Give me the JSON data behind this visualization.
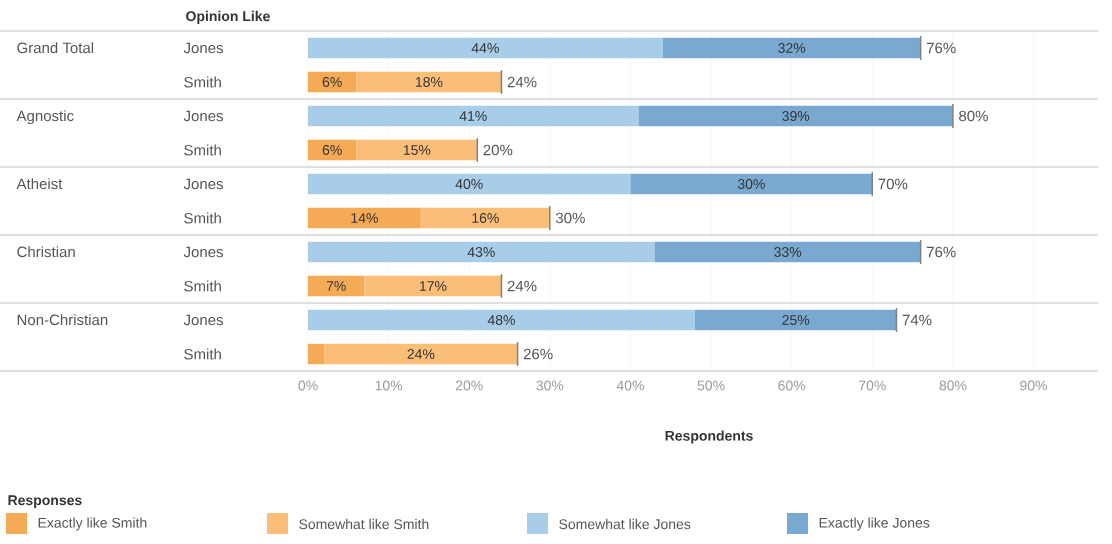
{
  "chart_data": {
    "type": "bar",
    "orientation": "horizontal",
    "stacked": true,
    "ylabel": "Opinion Like",
    "xlabel": "Respondents",
    "legend_title": "Responses",
    "categories": [
      "Jones",
      "Smith",
      "Jones",
      "Smith",
      "Jones",
      "Smith",
      "Jones",
      "Smith",
      "Jones",
      "Smith"
    ],
    "annotations": [
      "Grand Total",
      "Agnostic",
      "Atheist",
      "Christian",
      "Non-Christian"
    ],
    "series": [
      {
        "name": "Exactly like Smith",
        "color": "#f5aa55",
        "values": [
          null,
          6,
          null,
          6,
          null,
          14,
          null,
          7,
          null,
          2
        ],
        "value_labels": [
          null,
          "6%",
          null,
          "6%",
          null,
          "14%",
          null,
          "7%",
          null,
          null
        ]
      },
      {
        "name": "Somewhat like Smith",
        "color": "#fbbe78",
        "values": [
          null,
          18,
          null,
          15,
          null,
          16,
          null,
          17,
          null,
          24
        ],
        "value_labels": [
          null,
          "18%",
          null,
          "15%",
          null,
          "16%",
          null,
          "17%",
          null,
          "24%"
        ]
      },
      {
        "name": "Somewhat like Jones",
        "color": "#a7cde8",
        "values": [
          44,
          null,
          41,
          null,
          40,
          null,
          43,
          null,
          48,
          null
        ],
        "value_labels": [
          "44%",
          null,
          "41%",
          null,
          "40%",
          null,
          "43%",
          null,
          "48%",
          null
        ]
      },
      {
        "name": "Exactly like Jones",
        "color": "#79a9d0",
        "values": [
          32,
          null,
          39,
          null,
          30,
          null,
          33,
          null,
          25,
          null
        ],
        "value_labels": [
          "32%",
          null,
          "39%",
          null,
          "30%",
          null,
          "33%",
          null,
          "25%",
          null
        ]
      }
    ],
    "totals": [
      "76%",
      "24%",
      "80%",
      "20%",
      "70%",
      "30%",
      "76%",
      "24%",
      "74%",
      "26%"
    ],
    "xlim": [
      0,
      98
    ],
    "xticks": [
      {
        "value": 0,
        "label": "0%"
      },
      {
        "value": 10,
        "label": "10%"
      },
      {
        "value": 20,
        "label": "20%"
      },
      {
        "value": 30,
        "label": "30%"
      },
      {
        "value": 40,
        "label": "40%"
      },
      {
        "value": 50,
        "label": "50%"
      },
      {
        "value": 60,
        "label": "60%"
      },
      {
        "value": 70,
        "label": "70%"
      },
      {
        "value": 80,
        "label": "80%"
      },
      {
        "value": 90,
        "label": "90%"
      }
    ],
    "grid": "x",
    "legend": "bottom"
  }
}
